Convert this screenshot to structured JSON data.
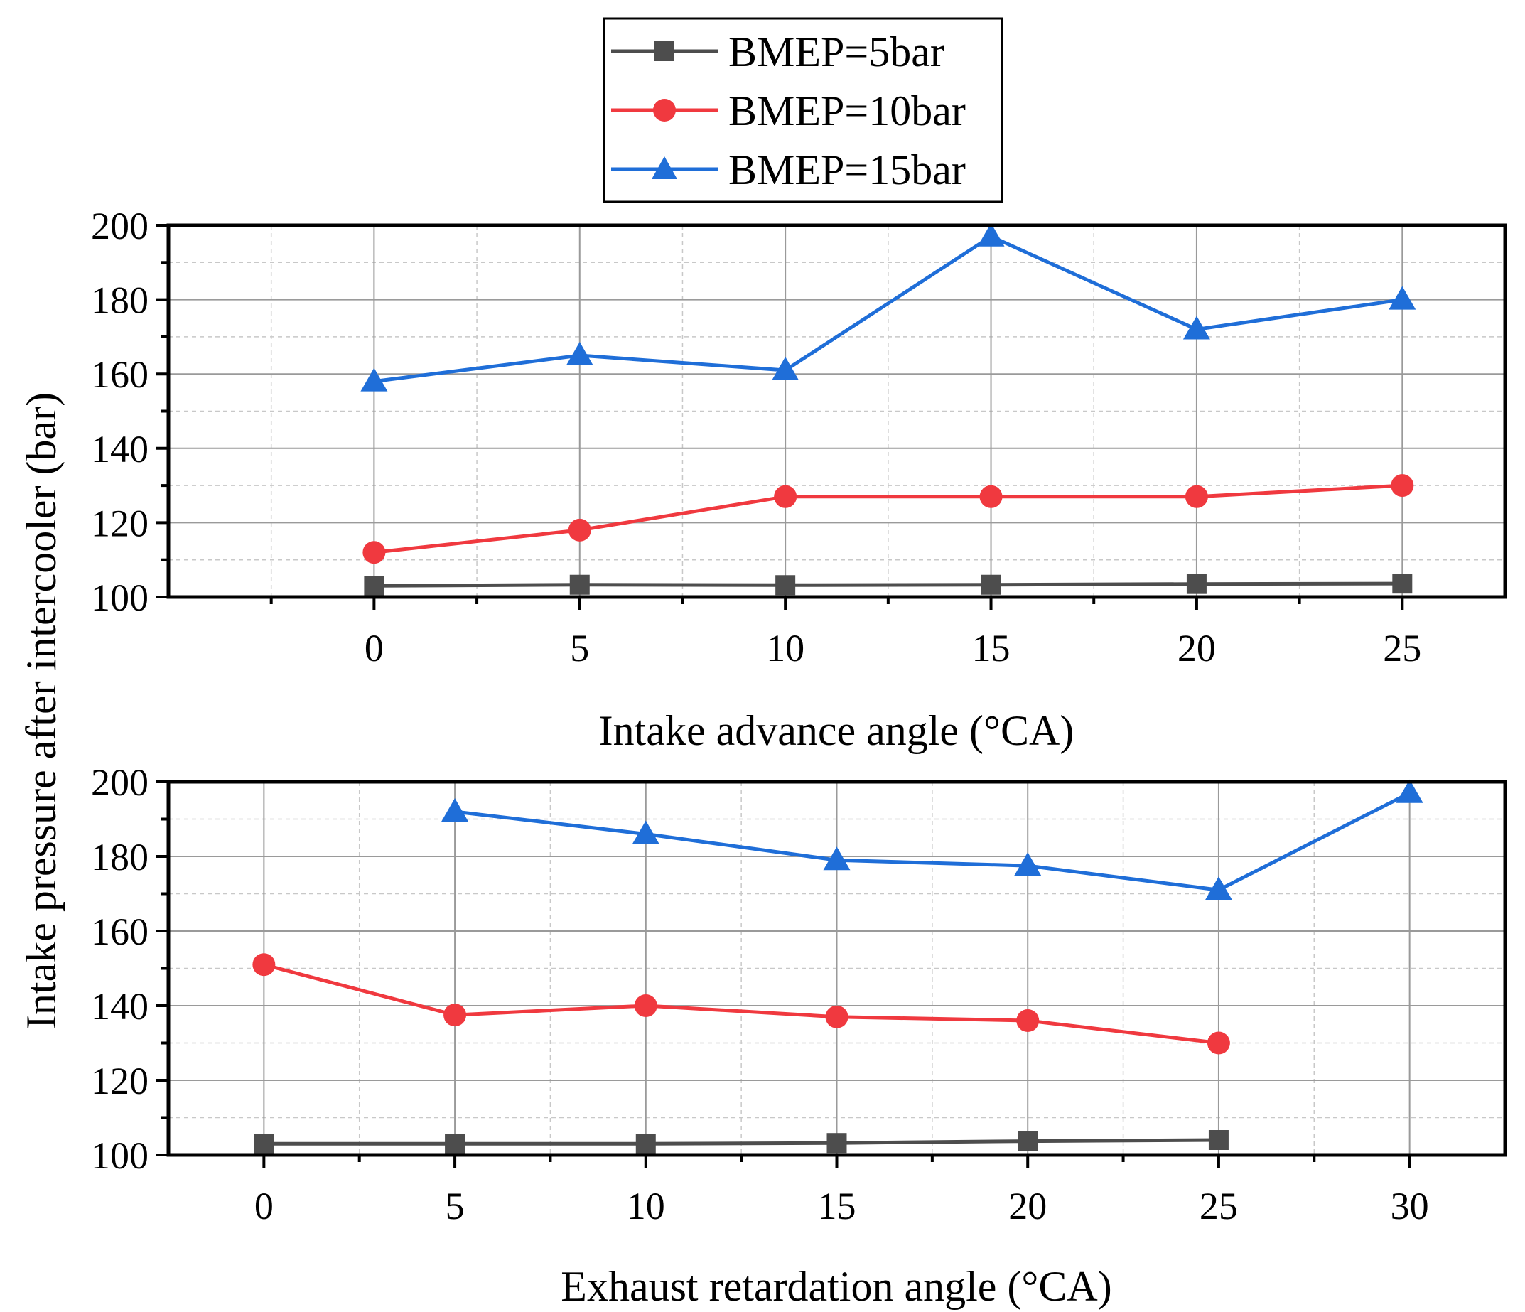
{
  "chart_data": [
    {
      "type": "line",
      "xlabel": "Intake advance angle (°CA)",
      "ylabel": "Intake pressure after intercooler (bar)",
      "xlim": [
        -5,
        27.5
      ],
      "ylim": [
        100,
        200
      ],
      "xticks": [
        0,
        5,
        10,
        15,
        20,
        25
      ],
      "yticks": [
        100,
        120,
        140,
        160,
        180,
        200
      ],
      "grid": true,
      "series": [
        {
          "name": "BMEP=5bar",
          "color": "#4d4d4d",
          "marker": "square",
          "x": [
            0,
            5,
            10,
            15,
            20,
            25
          ],
          "y": [
            103,
            103.3,
            103.2,
            103.3,
            103.5,
            103.6
          ]
        },
        {
          "name": "BMEP=10bar",
          "color": "#f0393f",
          "marker": "circle",
          "x": [
            0,
            5,
            10,
            15,
            20,
            25
          ],
          "y": [
            112,
            118,
            127,
            127,
            127,
            130
          ]
        },
        {
          "name": "BMEP=15bar",
          "color": "#1f6ed8",
          "marker": "triangle",
          "x": [
            0,
            5,
            10,
            15,
            20,
            25
          ],
          "y": [
            158,
            165,
            161,
            197,
            172,
            180
          ]
        }
      ]
    },
    {
      "type": "line",
      "xlabel": "Exhaust retardation angle (°CA)",
      "ylabel": "Intake pressure after intercooler (bar)",
      "xlim": [
        -2.5,
        32.5
      ],
      "ylim": [
        100,
        200
      ],
      "xticks": [
        0,
        5,
        10,
        15,
        20,
        25,
        30
      ],
      "yticks": [
        100,
        120,
        140,
        160,
        180,
        200
      ],
      "grid": true,
      "series": [
        {
          "name": "BMEP=5bar",
          "color": "#4d4d4d",
          "marker": "square",
          "x": [
            0,
            5,
            10,
            15,
            20,
            25
          ],
          "y": [
            103,
            103,
            103,
            103.2,
            103.7,
            104
          ]
        },
        {
          "name": "BMEP=10bar",
          "color": "#f0393f",
          "marker": "circle",
          "x": [
            0,
            5,
            10,
            15,
            20,
            25
          ],
          "y": [
            151,
            137.5,
            140,
            137,
            136,
            130
          ]
        },
        {
          "name": "BMEP=15bar",
          "color": "#1f6ed8",
          "marker": "triangle",
          "x": [
            5,
            10,
            15,
            20,
            25,
            30
          ],
          "y": [
            192,
            186,
            179,
            177.5,
            171,
            197
          ]
        }
      ]
    }
  ],
  "legend": {
    "position": "top-center",
    "entries": [
      "BMEP=5bar",
      "BMEP=10bar",
      "BMEP=15bar"
    ]
  }
}
